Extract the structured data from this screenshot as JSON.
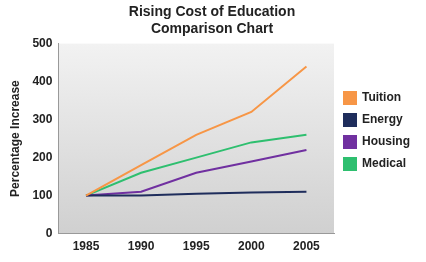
{
  "chart_data": {
    "type": "line",
    "title": [
      "Rising Cost of Education",
      "Comparison Chart"
    ],
    "y_label": "Percentage Increase",
    "categories": [
      "1985",
      "1990",
      "1995",
      "2000",
      "2005"
    ],
    "series": [
      {
        "name": "Tuition",
        "color": "#f79646",
        "values": [
          100,
          180,
          260,
          320,
          440
        ]
      },
      {
        "name": "Energy",
        "color": "#1f2d5c",
        "values": [
          100,
          100,
          105,
          108,
          110
        ]
      },
      {
        "name": "Housing",
        "color": "#7030a0",
        "values": [
          100,
          110,
          160,
          190,
          220
        ]
      },
      {
        "name": "Medical",
        "color": "#2ebf6f",
        "values": [
          100,
          160,
          200,
          240,
          260
        ]
      }
    ],
    "ylim": [
      0,
      500
    ],
    "yticks": [
      0,
      100,
      200,
      300,
      400,
      500
    ],
    "grid": false,
    "legend": "right"
  }
}
